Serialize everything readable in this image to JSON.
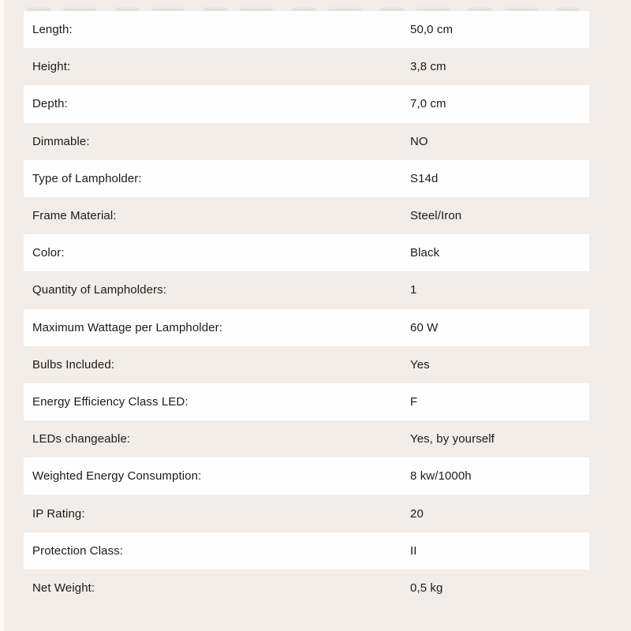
{
  "page": {
    "background_color": "#f2ede8",
    "row_highlight_color": "#ffffff",
    "text_color": "#1c1b1a"
  },
  "spec_table": {
    "rows": [
      {
        "label": "Length:",
        "value": "50,0 cm"
      },
      {
        "label": "Height:",
        "value": "3,8 cm"
      },
      {
        "label": "Depth:",
        "value": "7,0 cm"
      },
      {
        "label": "Dimmable:",
        "value": "NO"
      },
      {
        "label": "Type of Lampholder:",
        "value": "S14d"
      },
      {
        "label": "Frame Material:",
        "value": "Steel/Iron"
      },
      {
        "label": "Color:",
        "value": "Black"
      },
      {
        "label": "Quantity of Lampholders:",
        "value": "1"
      },
      {
        "label": "Maximum Wattage per Lampholder:",
        "value": "60 W"
      },
      {
        "label": "Bulbs Included:",
        "value": "Yes"
      },
      {
        "label": "Energy Efficiency Class LED:",
        "value": "F"
      },
      {
        "label": "LEDs changeable:",
        "value": "Yes, by yourself"
      },
      {
        "label": "Weighted Energy Consumption:",
        "value": "8 kw/1000h"
      },
      {
        "label": "IP Rating:",
        "value": "20"
      },
      {
        "label": "Protection Class:",
        "value": "II"
      },
      {
        "label": "Net Weight:",
        "value": "0,5 kg"
      }
    ]
  }
}
